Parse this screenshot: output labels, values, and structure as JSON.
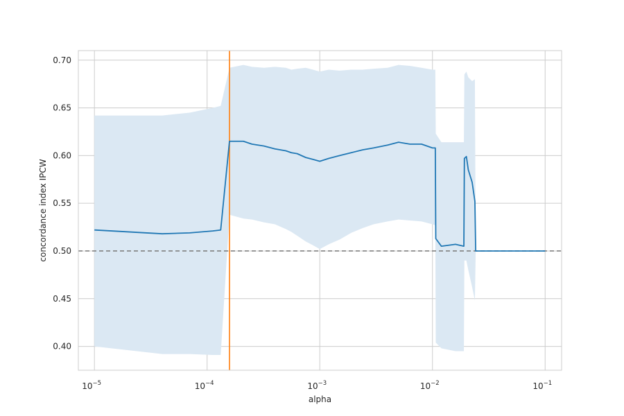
{
  "chart_data": {
    "type": "line",
    "xlabel": "alpha",
    "ylabel": "concordance index IPCW",
    "xscale": "log",
    "xlim": [
      7.2e-06,
      0.14
    ],
    "ylim": [
      0.375,
      0.71
    ],
    "grid": true,
    "legend": "none",
    "x_ticks": [
      {
        "value": 1e-05,
        "base": "10",
        "exp": "−5"
      },
      {
        "value": 0.0001,
        "base": "10",
        "exp": "−4"
      },
      {
        "value": 0.001,
        "base": "10",
        "exp": "−3"
      },
      {
        "value": 0.01,
        "base": "10",
        "exp": "−2"
      },
      {
        "value": 0.1,
        "base": "10",
        "exp": "−1"
      }
    ],
    "y_ticks": [
      {
        "value": 0.4,
        "label": "0.40"
      },
      {
        "value": 0.45,
        "label": "0.45"
      },
      {
        "value": 0.5,
        "label": "0.50"
      },
      {
        "value": 0.55,
        "label": "0.55"
      },
      {
        "value": 0.6,
        "label": "0.60"
      },
      {
        "value": 0.65,
        "label": "0.65"
      },
      {
        "value": 0.7,
        "label": "0.70"
      }
    ],
    "reference_line": {
      "y": 0.5,
      "style": "dashed",
      "color": "#808080"
    },
    "vertical_line": {
      "x": 0.000158,
      "color": "#ff7f0e"
    },
    "colors": {
      "line": "#1f77b4",
      "band": "#dbe8f3",
      "grid": "#cccccc",
      "axes": "#cccccc"
    },
    "series": [
      {
        "values": [
          {
            "x": 1e-05,
            "y": 0.522,
            "lo": 0.4,
            "hi": 0.642
          },
          {
            "x": 4e-05,
            "y": 0.518,
            "lo": 0.392,
            "hi": 0.642
          },
          {
            "x": 7e-05,
            "y": 0.519,
            "lo": 0.392,
            "hi": 0.645
          },
          {
            "x": 0.000112,
            "y": 0.521,
            "lo": 0.391,
            "hi": 0.65
          },
          {
            "x": 0.000132,
            "y": 0.522,
            "lo": 0.391,
            "hi": 0.652
          },
          {
            "x": 0.000158,
            "y": 0.615,
            "lo": 0.538,
            "hi": 0.692
          },
          {
            "x": 0.00021,
            "y": 0.615,
            "lo": 0.534,
            "hi": 0.695
          },
          {
            "x": 0.00025,
            "y": 0.612,
            "lo": 0.533,
            "hi": 0.693
          },
          {
            "x": 0.00032,
            "y": 0.61,
            "lo": 0.53,
            "hi": 0.692
          },
          {
            "x": 0.0004,
            "y": 0.607,
            "lo": 0.528,
            "hi": 0.693
          },
          {
            "x": 0.0005,
            "y": 0.605,
            "lo": 0.523,
            "hi": 0.692
          },
          {
            "x": 0.00056,
            "y": 0.603,
            "lo": 0.52,
            "hi": 0.69
          },
          {
            "x": 0.00063,
            "y": 0.602,
            "lo": 0.516,
            "hi": 0.691
          },
          {
            "x": 0.00075,
            "y": 0.598,
            "lo": 0.51,
            "hi": 0.692
          },
          {
            "x": 0.00087,
            "y": 0.596,
            "lo": 0.506,
            "hi": 0.69
          },
          {
            "x": 0.001,
            "y": 0.594,
            "lo": 0.502,
            "hi": 0.688
          },
          {
            "x": 0.0012,
            "y": 0.597,
            "lo": 0.507,
            "hi": 0.69
          },
          {
            "x": 0.0015,
            "y": 0.6,
            "lo": 0.512,
            "hi": 0.689
          },
          {
            "x": 0.0019,
            "y": 0.603,
            "lo": 0.519,
            "hi": 0.69
          },
          {
            "x": 0.0024,
            "y": 0.606,
            "lo": 0.524,
            "hi": 0.69
          },
          {
            "x": 0.003,
            "y": 0.608,
            "lo": 0.528,
            "hi": 0.691
          },
          {
            "x": 0.004,
            "y": 0.611,
            "lo": 0.531,
            "hi": 0.692
          },
          {
            "x": 0.005,
            "y": 0.614,
            "lo": 0.533,
            "hi": 0.695
          },
          {
            "x": 0.0063,
            "y": 0.612,
            "lo": 0.532,
            "hi": 0.694
          },
          {
            "x": 0.008,
            "y": 0.612,
            "lo": 0.531,
            "hi": 0.692
          },
          {
            "x": 0.01,
            "y": 0.608,
            "lo": 0.528,
            "hi": 0.69
          },
          {
            "x": 0.0106,
            "y": 0.608,
            "lo": 0.527,
            "hi": 0.69
          },
          {
            "x": 0.0107,
            "y": 0.513,
            "lo": 0.404,
            "hi": 0.623
          },
          {
            "x": 0.012,
            "y": 0.505,
            "lo": 0.398,
            "hi": 0.614
          },
          {
            "x": 0.016,
            "y": 0.507,
            "lo": 0.395,
            "hi": 0.614
          },
          {
            "x": 0.019,
            "y": 0.505,
            "lo": 0.395,
            "hi": 0.614
          },
          {
            "x": 0.0192,
            "y": 0.597,
            "lo": 0.49,
            "hi": 0.685
          },
          {
            "x": 0.02,
            "y": 0.599,
            "lo": 0.49,
            "hi": 0.688
          },
          {
            "x": 0.0208,
            "y": 0.585,
            "lo": 0.48,
            "hi": 0.682
          },
          {
            "x": 0.0225,
            "y": 0.572,
            "lo": 0.462,
            "hi": 0.678
          },
          {
            "x": 0.0238,
            "y": 0.552,
            "lo": 0.448,
            "hi": 0.68
          },
          {
            "x": 0.0242,
            "y": 0.5,
            "lo": 0.5,
            "hi": 0.5
          },
          {
            "x": 0.1,
            "y": 0.5,
            "lo": 0.5,
            "hi": 0.5
          }
        ]
      }
    ]
  }
}
